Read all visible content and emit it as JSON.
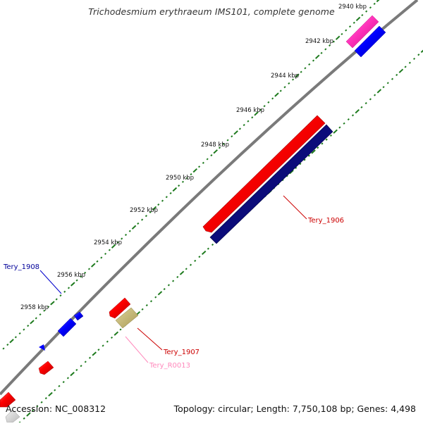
{
  "title": "Trichodesmium erythraeum IMS101, complete genome",
  "footer": {
    "accession": "Accession: NC_008312",
    "summary": "Topology: circular; Length: 7,750,108 bp; Genes: 4,498"
  },
  "scale_labels": [
    "2940 kbp",
    "2942 kbp",
    "2944 kbp",
    "2946 kbp",
    "2948 kbp",
    "2950 kbp",
    "2952 kbp",
    "2954 kbp",
    "2956 kbp",
    "2958 kbp"
  ],
  "gene_labels": {
    "tery_1906": "Tery_1906",
    "tery_1907": "Tery_1907",
    "tery_1908": "Tery_1908",
    "tery_r0013": "Tery_R0013"
  },
  "colors": {
    "backbone": "#7a7a7a",
    "tick": "#1d7a1d",
    "forward_gene": "#ff0000",
    "reverse_gene": "#0000ff",
    "reverse_cds_dark": "#0c0c7a",
    "rna": "#c8bb74",
    "pseudo": "#ff33bb",
    "label_red": "#cc0000",
    "label_blue": "#000099",
    "label_pink": "#ff88bb"
  }
}
